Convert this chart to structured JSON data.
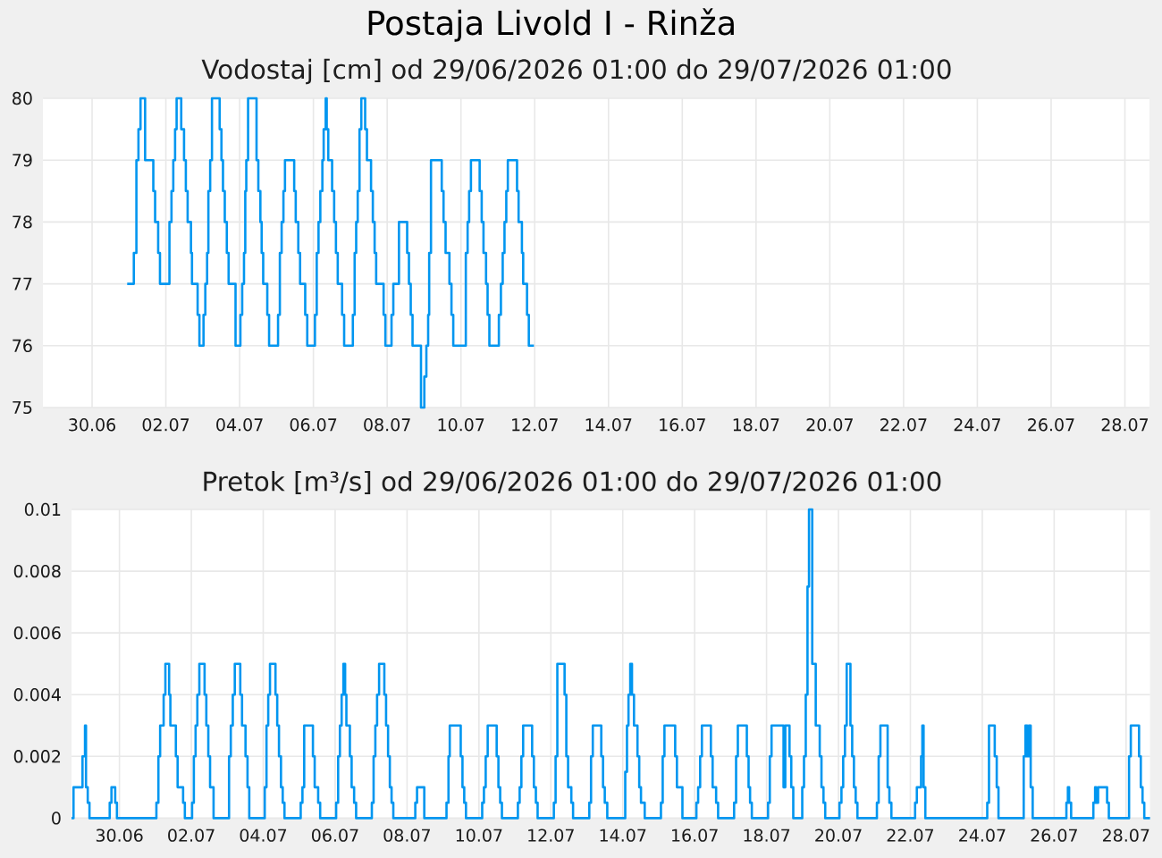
{
  "chart_data": [
    {
      "type": "step",
      "title": "Postaja Livold I - Rinža",
      "subtitle": "Vodostaj [cm] od 29/06/2026 01:00 do 29/07/2026 01:00",
      "x": [
        "2026-07-01T07:50",
        "2026-07-01T12:10",
        "2026-07-01T13:50",
        "2026-07-01T15:10",
        "2026-07-01T16:30",
        "2026-07-01T19:30",
        "2026-07-02T00:50",
        "2026-07-02T02:00",
        "2026-07-02T04:00",
        "2026-07-02T05:10",
        "2026-07-02T11:20",
        "2026-07-02T12:40",
        "2026-07-02T13:50",
        "2026-07-02T15:00",
        "2026-07-02T16:00",
        "2026-07-02T19:00",
        "2026-07-02T20:50",
        "2026-07-02T22:00",
        "2026-07-02T23:10",
        "2026-07-03T01:20",
        "2026-07-03T02:00",
        "2026-07-03T05:40",
        "2026-07-03T06:50",
        "2026-07-03T09:30",
        "2026-07-03T10:40",
        "2026-07-03T11:50",
        "2026-07-03T12:40",
        "2026-07-03T13:50",
        "2026-07-03T15:00",
        "2026-07-03T20:00",
        "2026-07-03T21:10",
        "2026-07-03T22:10",
        "2026-07-03T23:20",
        "2026-07-04T00:40",
        "2026-07-04T01:50",
        "2026-07-04T06:20",
        "2026-07-04T09:30",
        "2026-07-04T10:40",
        "2026-07-04T11:50",
        "2026-07-04T12:40",
        "2026-07-04T13:20",
        "2026-07-04T14:30",
        "2026-07-04T20:00",
        "2026-07-04T21:10",
        "2026-07-04T22:30",
        "2026-07-04T23:20",
        "2026-07-05T00:20",
        "2026-07-05T03:00",
        "2026-07-05T04:10",
        "2026-07-05T10:00",
        "2026-07-05T11:10",
        "2026-07-05T12:20",
        "2026-07-05T13:30",
        "2026-07-05T14:30",
        "2026-07-05T20:30",
        "2026-07-05T21:30",
        "2026-07-05T23:10",
        "2026-07-06T00:20",
        "2026-07-06T03:40",
        "2026-07-06T05:00",
        "2026-07-06T10:00",
        "2026-07-06T11:10",
        "2026-07-06T12:20",
        "2026-07-06T13:30",
        "2026-07-06T14:50",
        "2026-07-06T15:40",
        "2026-07-06T17:00",
        "2026-07-06T17:40",
        "2026-07-06T18:40",
        "2026-07-06T21:10",
        "2026-07-06T22:30",
        "2026-07-06T23:40",
        "2026-07-07T00:50",
        "2026-07-07T03:40",
        "2026-07-07T05:00",
        "2026-07-07T10:40",
        "2026-07-07T11:50",
        "2026-07-07T12:50",
        "2026-07-07T13:50",
        "2026-07-07T15:00",
        "2026-07-07T16:10",
        "2026-07-07T18:40",
        "2026-07-07T19:50",
        "2026-07-07T22:30",
        "2026-07-07T23:40",
        "2026-07-08T00:50",
        "2026-07-08T01:50",
        "2026-07-08T06:40",
        "2026-07-08T07:50",
        "2026-07-08T11:50",
        "2026-07-08T13:00",
        "2026-07-08T16:40",
        "2026-07-08T22:00",
        "2026-07-08T23:10",
        "2026-07-09T00:20",
        "2026-07-09T01:30",
        "2026-07-09T07:00",
        "2026-07-09T09:10",
        "2026-07-09T10:30",
        "2026-07-09T11:40",
        "2026-07-09T12:20",
        "2026-07-09T13:30",
        "2026-07-09T20:30",
        "2026-07-09T21:40",
        "2026-07-09T23:00",
        "2026-07-10T01:30",
        "2026-07-10T02:50",
        "2026-07-10T04:00",
        "2026-07-10T12:10",
        "2026-07-10T13:20",
        "2026-07-10T14:20",
        "2026-07-10T15:30",
        "2026-07-10T21:10",
        "2026-07-10T22:30",
        "2026-07-10T23:40",
        "2026-07-11T01:20",
        "2026-07-11T02:20",
        "2026-07-11T03:30",
        "2026-07-11T09:40",
        "2026-07-11T11:00",
        "2026-07-11T12:10",
        "2026-07-11T13:20",
        "2026-07-11T14:30",
        "2026-07-11T15:30",
        "2026-07-11T21:30",
        "2026-07-11T22:30",
        "2026-07-12T00:40",
        "2026-07-12T01:30",
        "2026-07-12T04:00",
        "2026-07-12T05:10",
        "2026-07-12T08:30"
      ],
      "values": [
        77,
        77.5,
        79,
        79.5,
        80,
        79,
        78.5,
        78,
        77.5,
        77,
        78,
        78.5,
        79,
        79.5,
        80,
        79.5,
        79,
        78.5,
        78,
        77.5,
        77,
        76.5,
        76,
        76.5,
        77,
        77.5,
        78.5,
        79,
        80,
        79.5,
        79,
        78.5,
        78,
        77.5,
        77,
        76,
        76.5,
        77,
        77.5,
        78.5,
        79,
        80,
        79,
        78.5,
        78,
        77.5,
        77,
        76.5,
        76,
        76.5,
        77.5,
        78,
        78.5,
        79,
        78.5,
        78,
        77.5,
        77,
        76.5,
        76,
        76.5,
        77.5,
        78,
        78.5,
        79,
        79.5,
        80,
        79.5,
        79,
        78.5,
        78,
        77.5,
        77,
        76.5,
        76,
        76.5,
        77.5,
        78,
        78.5,
        79.5,
        80,
        79.5,
        79,
        78.5,
        78,
        77.5,
        77,
        76.5,
        76,
        76.5,
        77,
        78,
        77.5,
        77,
        76.5,
        76,
        75,
        75.5,
        76,
        76.5,
        77.5,
        79,
        78.5,
        78,
        77.5,
        77,
        76.5,
        76,
        77.5,
        78,
        78.5,
        79,
        78.5,
        78,
        77.5,
        77,
        76.5,
        76,
        76.5,
        77,
        77.5,
        78,
        78.5,
        79,
        78.5,
        78,
        77.5,
        77,
        76.5,
        76,
        76
      ],
      "color": "#0096f0",
      "xlim": [
        "2026-06-29T01:00",
        "2026-07-29T01:00"
      ],
      "ylim": [
        75,
        80
      ],
      "xticks": [
        {
          "value": "2026-06-30T09:00",
          "label": "30.06"
        },
        {
          "value": "2026-07-02T09:00",
          "label": "02.07"
        },
        {
          "value": "2026-07-04T09:00",
          "label": "04.07"
        },
        {
          "value": "2026-07-06T09:00",
          "label": "06.07"
        },
        {
          "value": "2026-07-08T09:00",
          "label": "08.07"
        },
        {
          "value": "2026-07-10T09:00",
          "label": "10.07"
        },
        {
          "value": "2026-07-12T09:00",
          "label": "12.07"
        },
        {
          "value": "2026-07-14T09:00",
          "label": "14.07"
        },
        {
          "value": "2026-07-16T09:00",
          "label": "16.07"
        },
        {
          "value": "2026-07-18T09:00",
          "label": "18.07"
        },
        {
          "value": "2026-07-20T09:00",
          "label": "20.07"
        },
        {
          "value": "2026-07-22T09:00",
          "label": "22.07"
        },
        {
          "value": "2026-07-24T09:00",
          "label": "24.07"
        },
        {
          "value": "2026-07-26T09:00",
          "label": "26.07"
        },
        {
          "value": "2026-07-28T09:00",
          "label": "28.07"
        }
      ],
      "yticks": [
        75,
        76,
        77,
        78,
        79,
        80
      ],
      "grid": true
    },
    {
      "type": "step",
      "title": "Pretok [m³/s] od 29/06/2026 01:00 do 29/07/2026 01:00",
      "x": [
        "2026-06-29T01:00",
        "2026-06-29T02:20",
        "2026-06-29T08:20",
        "2026-06-29T10:00",
        "2026-06-29T10:40",
        "2026-06-29T11:50",
        "2026-06-29T13:00",
        "2026-06-30T02:30",
        "2026-06-30T03:40",
        "2026-06-30T06:10",
        "2026-06-30T07:20",
        "2026-07-01T09:40",
        "2026-07-01T11:00",
        "2026-07-01T12:10",
        "2026-07-01T14:30",
        "2026-07-01T15:40",
        "2026-07-01T18:10",
        "2026-07-01T19:00",
        "2026-07-01T22:40",
        "2026-07-01T23:50",
        "2026-07-02T03:30",
        "2026-07-02T04:40",
        "2026-07-02T09:30",
        "2026-07-02T10:40",
        "2026-07-02T11:50",
        "2026-07-02T13:00",
        "2026-07-02T14:20",
        "2026-07-02T17:50",
        "2026-07-02T19:00",
        "2026-07-02T20:20",
        "2026-07-02T21:30",
        "2026-07-02T23:50",
        "2026-07-03T10:10",
        "2026-07-03T11:20",
        "2026-07-03T12:40",
        "2026-07-03T14:00",
        "2026-07-03T17:40",
        "2026-07-03T18:50",
        "2026-07-03T21:10",
        "2026-07-03T22:30",
        "2026-07-03T23:40",
        "2026-07-04T10:00",
        "2026-07-04T11:10",
        "2026-07-04T12:20",
        "2026-07-04T13:30",
        "2026-07-04T17:10",
        "2026-07-04T18:20",
        "2026-07-04T19:30",
        "2026-07-04T20:50",
        "2026-07-04T22:00",
        "2026-07-04T23:10",
        "2026-07-05T10:00",
        "2026-07-05T11:10",
        "2026-07-05T12:20",
        "2026-07-05T18:10",
        "2026-07-05T19:20",
        "2026-07-05T21:40",
        "2026-07-05T23:00",
        "2026-07-06T09:40",
        "2026-07-06T11:00",
        "2026-07-06T12:10",
        "2026-07-06T13:20",
        "2026-07-06T14:30",
        "2026-07-06T15:40",
        "2026-07-06T16:30",
        "2026-07-06T18:50",
        "2026-07-06T20:00",
        "2026-07-06T21:40",
        "2026-07-06T23:00",
        "2026-07-07T09:30",
        "2026-07-07T10:40",
        "2026-07-07T11:50",
        "2026-07-07T13:00",
        "2026-07-07T14:20",
        "2026-07-07T17:50",
        "2026-07-07T19:00",
        "2026-07-07T20:20",
        "2026-07-07T21:30",
        "2026-07-07T22:40",
        "2026-07-07T23:50",
        "2026-07-08T14:30",
        "2026-07-08T15:40",
        "2026-07-08T20:30",
        "2026-07-09T11:20",
        "2026-07-09T12:40",
        "2026-07-09T13:30",
        "2026-07-09T20:50",
        "2026-07-09T22:00",
        "2026-07-09T23:10",
        "2026-07-10T00:20",
        "2026-07-10T11:10",
        "2026-07-10T12:20",
        "2026-07-10T13:30",
        "2026-07-10T14:50",
        "2026-07-10T20:50",
        "2026-07-10T22:00",
        "2026-07-10T23:10",
        "2026-07-11T00:20",
        "2026-07-11T11:00",
        "2026-07-11T12:10",
        "2026-07-11T13:20",
        "2026-07-11T14:30",
        "2026-07-11T20:30",
        "2026-07-11T21:40",
        "2026-07-11T23:00",
        "2026-07-12T00:10",
        "2026-07-12T11:00",
        "2026-07-12T12:10",
        "2026-07-12T13:20",
        "2026-07-12T18:10",
        "2026-07-12T19:20",
        "2026-07-12T20:30",
        "2026-07-12T22:40",
        "2026-07-12T23:50",
        "2026-07-13T10:40",
        "2026-07-13T11:50",
        "2026-07-13T13:00",
        "2026-07-13T18:40",
        "2026-07-13T19:50",
        "2026-07-13T21:00",
        "2026-07-13T22:40",
        "2026-07-14T10:40",
        "2026-07-14T11:50",
        "2026-07-14T12:50",
        "2026-07-14T14:00",
        "2026-07-14T15:10",
        "2026-07-14T16:30",
        "2026-07-14T18:50",
        "2026-07-14T20:00",
        "2026-07-14T21:10",
        "2026-07-14T23:40",
        "2026-07-15T10:30",
        "2026-07-15T11:40",
        "2026-07-15T12:50",
        "2026-07-15T20:00",
        "2026-07-15T21:10",
        "2026-07-16T00:50",
        "2026-07-16T10:10",
        "2026-07-16T11:20",
        "2026-07-16T12:40",
        "2026-07-16T13:50",
        "2026-07-16T19:50",
        "2026-07-16T21:00",
        "2026-07-16T23:20",
        "2026-07-17T00:40",
        "2026-07-17T11:20",
        "2026-07-17T12:40",
        "2026-07-17T13:50",
        "2026-07-17T19:50",
        "2026-07-17T21:00",
        "2026-07-17T22:00",
        "2026-07-17T23:10",
        "2026-07-18T10:00",
        "2026-07-18T11:10",
        "2026-07-18T12:20",
        "2026-07-18T20:20",
        "2026-07-18T21:30",
        "2026-07-19T00:20",
        "2026-07-19T01:30",
        "2026-07-19T02:50",
        "2026-07-19T08:50",
        "2026-07-19T10:00",
        "2026-07-19T11:10",
        "2026-07-19T12:20",
        "2026-07-19T13:20",
        "2026-07-19T15:30",
        "2026-07-19T17:50",
        "2026-07-19T20:30",
        "2026-07-19T21:40",
        "2026-07-19T23:00",
        "2026-07-20T00:10",
        "2026-07-20T09:40",
        "2026-07-20T11:00",
        "2026-07-20T12:10",
        "2026-07-20T13:20",
        "2026-07-20T14:30",
        "2026-07-20T17:00",
        "2026-07-20T18:10",
        "2026-07-20T19:20",
        "2026-07-20T20:30",
        "2026-07-20T21:40",
        "2026-07-21T10:40",
        "2026-07-21T11:50",
        "2026-07-21T13:00",
        "2026-07-21T17:50",
        "2026-07-21T19:00",
        "2026-07-21T20:20",
        "2026-07-22T12:10",
        "2026-07-22T13:20",
        "2026-07-22T16:10",
        "2026-07-22T17:00",
        "2026-07-22T17:50",
        "2026-07-22T19:00",
        "2026-07-24T12:20",
        "2026-07-24T13:30",
        "2026-07-24T17:20",
        "2026-07-24T18:40",
        "2026-07-24T19:50",
        "2026-07-25T12:40",
        "2026-07-25T13:50",
        "2026-07-25T15:00",
        "2026-07-25T16:10",
        "2026-07-25T17:20",
        "2026-07-25T18:40",
        "2026-07-26T17:10",
        "2026-07-26T18:10",
        "2026-07-26T19:00",
        "2026-07-26T20:20",
        "2026-07-27T11:10",
        "2026-07-27T12:20",
        "2026-07-27T13:00",
        "2026-07-27T14:20",
        "2026-07-27T20:20",
        "2026-07-27T21:30",
        "2026-07-28T11:00",
        "2026-07-28T12:10",
        "2026-07-28T17:40",
        "2026-07-28T18:50",
        "2026-07-28T20:00",
        "2026-07-28T21:10",
        "2026-07-29T01:00"
      ],
      "values": [
        0,
        0.001,
        0.002,
        0.003,
        0.001,
        0.0005,
        0,
        0.0005,
        0.001,
        0.0005,
        0,
        0.0005,
        0.002,
        0.003,
        0.004,
        0.005,
        0.004,
        0.003,
        0.002,
        0.001,
        0.0005,
        0,
        0.0005,
        0.002,
        0.003,
        0.004,
        0.005,
        0.004,
        0.003,
        0.002,
        0.001,
        0,
        0.002,
        0.003,
        0.004,
        0.005,
        0.004,
        0.003,
        0.002,
        0.001,
        0,
        0.001,
        0.003,
        0.004,
        0.005,
        0.004,
        0.003,
        0.002,
        0.001,
        0.0005,
        0,
        0.0005,
        0.001,
        0.003,
        0.002,
        0.001,
        0.0005,
        0,
        0.0005,
        0.002,
        0.003,
        0.004,
        0.005,
        0.004,
        0.003,
        0.002,
        0.001,
        0.0005,
        0,
        0.0005,
        0.002,
        0.003,
        0.004,
        0.005,
        0.004,
        0.003,
        0.002,
        0.001,
        0.0005,
        0,
        0.0005,
        0.001,
        0,
        0.0005,
        0.002,
        0.003,
        0.002,
        0.001,
        0.0005,
        0,
        0.0005,
        0.001,
        0.002,
        0.003,
        0.002,
        0.001,
        0.0005,
        0,
        0.0005,
        0.001,
        0.002,
        0.003,
        0.002,
        0.001,
        0.0005,
        0,
        0.0005,
        0.002,
        0.005,
        0.004,
        0.002,
        0.001,
        0.0005,
        0,
        0.0005,
        0.002,
        0.003,
        0.002,
        0.001,
        0.0005,
        0,
        0.0015,
        0.003,
        0.004,
        0.005,
        0.004,
        0.003,
        0.002,
        0.001,
        0.0005,
        0,
        0.0005,
        0.002,
        0.003,
        0.002,
        0.001,
        0,
        0.0005,
        0.001,
        0.002,
        0.003,
        0.002,
        0.001,
        0.0005,
        0,
        0.0005,
        0.002,
        0.003,
        0.002,
        0.001,
        0.0005,
        0,
        0.0005,
        0.002,
        0.003,
        0.001,
        0.003,
        0.002,
        0.001,
        0,
        0.001,
        0.002,
        0.004,
        0.0075,
        0.01,
        0.005,
        0.003,
        0.002,
        0.001,
        0.0005,
        0,
        0.0005,
        0.001,
        0.002,
        0.003,
        0.005,
        0.003,
        0.002,
        0.001,
        0.0005,
        0,
        0.0005,
        0.002,
        0.003,
        0.001,
        0.0005,
        0,
        0.0005,
        0.001,
        0.002,
        0.003,
        0.001,
        0,
        0.0005,
        0.003,
        0.002,
        0.001,
        0,
        0.002,
        0.003,
        0.002,
        0.003,
        0.001,
        0,
        0.0005,
        0.001,
        0.0005,
        0,
        0.0005,
        0.001,
        0.0005,
        0.001,
        0.0005,
        0,
        0.002,
        0.003,
        0.002,
        0.001,
        0.0005,
        0,
        0
      ],
      "color": "#0096f0",
      "xlim": [
        "2026-06-29T01:00",
        "2026-07-29T01:00"
      ],
      "ylim": [
        0,
        0.01
      ],
      "xticks": [
        {
          "value": "2026-06-30T09:00",
          "label": "30.06"
        },
        {
          "value": "2026-07-02T09:00",
          "label": "02.07"
        },
        {
          "value": "2026-07-04T09:00",
          "label": "04.07"
        },
        {
          "value": "2026-07-06T09:00",
          "label": "06.07"
        },
        {
          "value": "2026-07-08T09:00",
          "label": "08.07"
        },
        {
          "value": "2026-07-10T09:00",
          "label": "10.07"
        },
        {
          "value": "2026-07-12T09:00",
          "label": "12.07"
        },
        {
          "value": "2026-07-14T09:00",
          "label": "14.07"
        },
        {
          "value": "2026-07-16T09:00",
          "label": "16.07"
        },
        {
          "value": "2026-07-18T09:00",
          "label": "18.07"
        },
        {
          "value": "2026-07-20T09:00",
          "label": "20.07"
        },
        {
          "value": "2026-07-22T09:00",
          "label": "22.07"
        },
        {
          "value": "2026-07-24T09:00",
          "label": "24.07"
        },
        {
          "value": "2026-07-26T09:00",
          "label": "26.07"
        },
        {
          "value": "2026-07-28T09:00",
          "label": "28.07"
        }
      ],
      "yticks": [
        0,
        0.002,
        0.004,
        0.006,
        0.008,
        0.01
      ],
      "grid": true
    }
  ]
}
